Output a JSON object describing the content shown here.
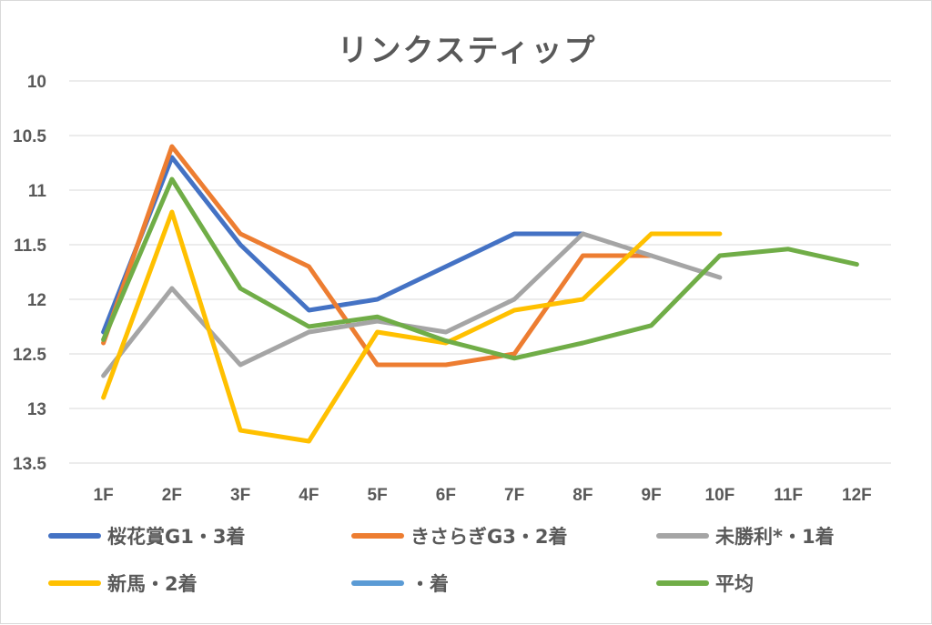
{
  "chart_data": {
    "type": "line",
    "title": "リンクスティップ",
    "xlabel": "",
    "ylabel": "",
    "categories": [
      "1F",
      "2F",
      "3F",
      "4F",
      "5F",
      "6F",
      "7F",
      "8F",
      "9F",
      "10F",
      "11F",
      "12F"
    ],
    "y_ticks": [
      "10",
      "10.5",
      "11",
      "11.5",
      "12",
      "12.5",
      "13",
      "13.5"
    ],
    "ylim": [
      10,
      13.5
    ],
    "y_reversed": true,
    "grid": true,
    "legend_position": "bottom",
    "series": [
      {
        "name": "桜花賞G1・3着",
        "color": "#4472c4",
        "values": [
          12.3,
          10.7,
          11.5,
          12.1,
          12.0,
          11.7,
          11.4,
          11.4,
          null,
          null,
          null,
          null
        ]
      },
      {
        "name": "きさらぎG3・2着",
        "color": "#ed7d31",
        "values": [
          12.4,
          10.6,
          11.4,
          11.7,
          12.6,
          12.6,
          12.5,
          11.6,
          11.6,
          null,
          null,
          null
        ]
      },
      {
        "name": "未勝利*・1着",
        "color": "#a5a5a5",
        "values": [
          12.7,
          11.9,
          12.6,
          12.3,
          12.2,
          12.3,
          12.0,
          11.4,
          11.6,
          11.8,
          null,
          null
        ]
      },
      {
        "name": "新馬・2着",
        "color": "#ffc000",
        "values": [
          12.9,
          11.2,
          13.2,
          13.3,
          12.3,
          12.4,
          12.1,
          12.0,
          11.4,
          11.4,
          null,
          null
        ]
      },
      {
        "name": "・着",
        "color": "#5b9bd5",
        "values": [
          null,
          null,
          null,
          null,
          null,
          null,
          null,
          null,
          null,
          null,
          null,
          null
        ]
      },
      {
        "name": "平均",
        "color": "#70ad47",
        "values": [
          12.37,
          10.9,
          11.9,
          12.25,
          12.16,
          12.38,
          12.54,
          12.4,
          12.24,
          11.6,
          11.54,
          11.68
        ]
      }
    ]
  }
}
